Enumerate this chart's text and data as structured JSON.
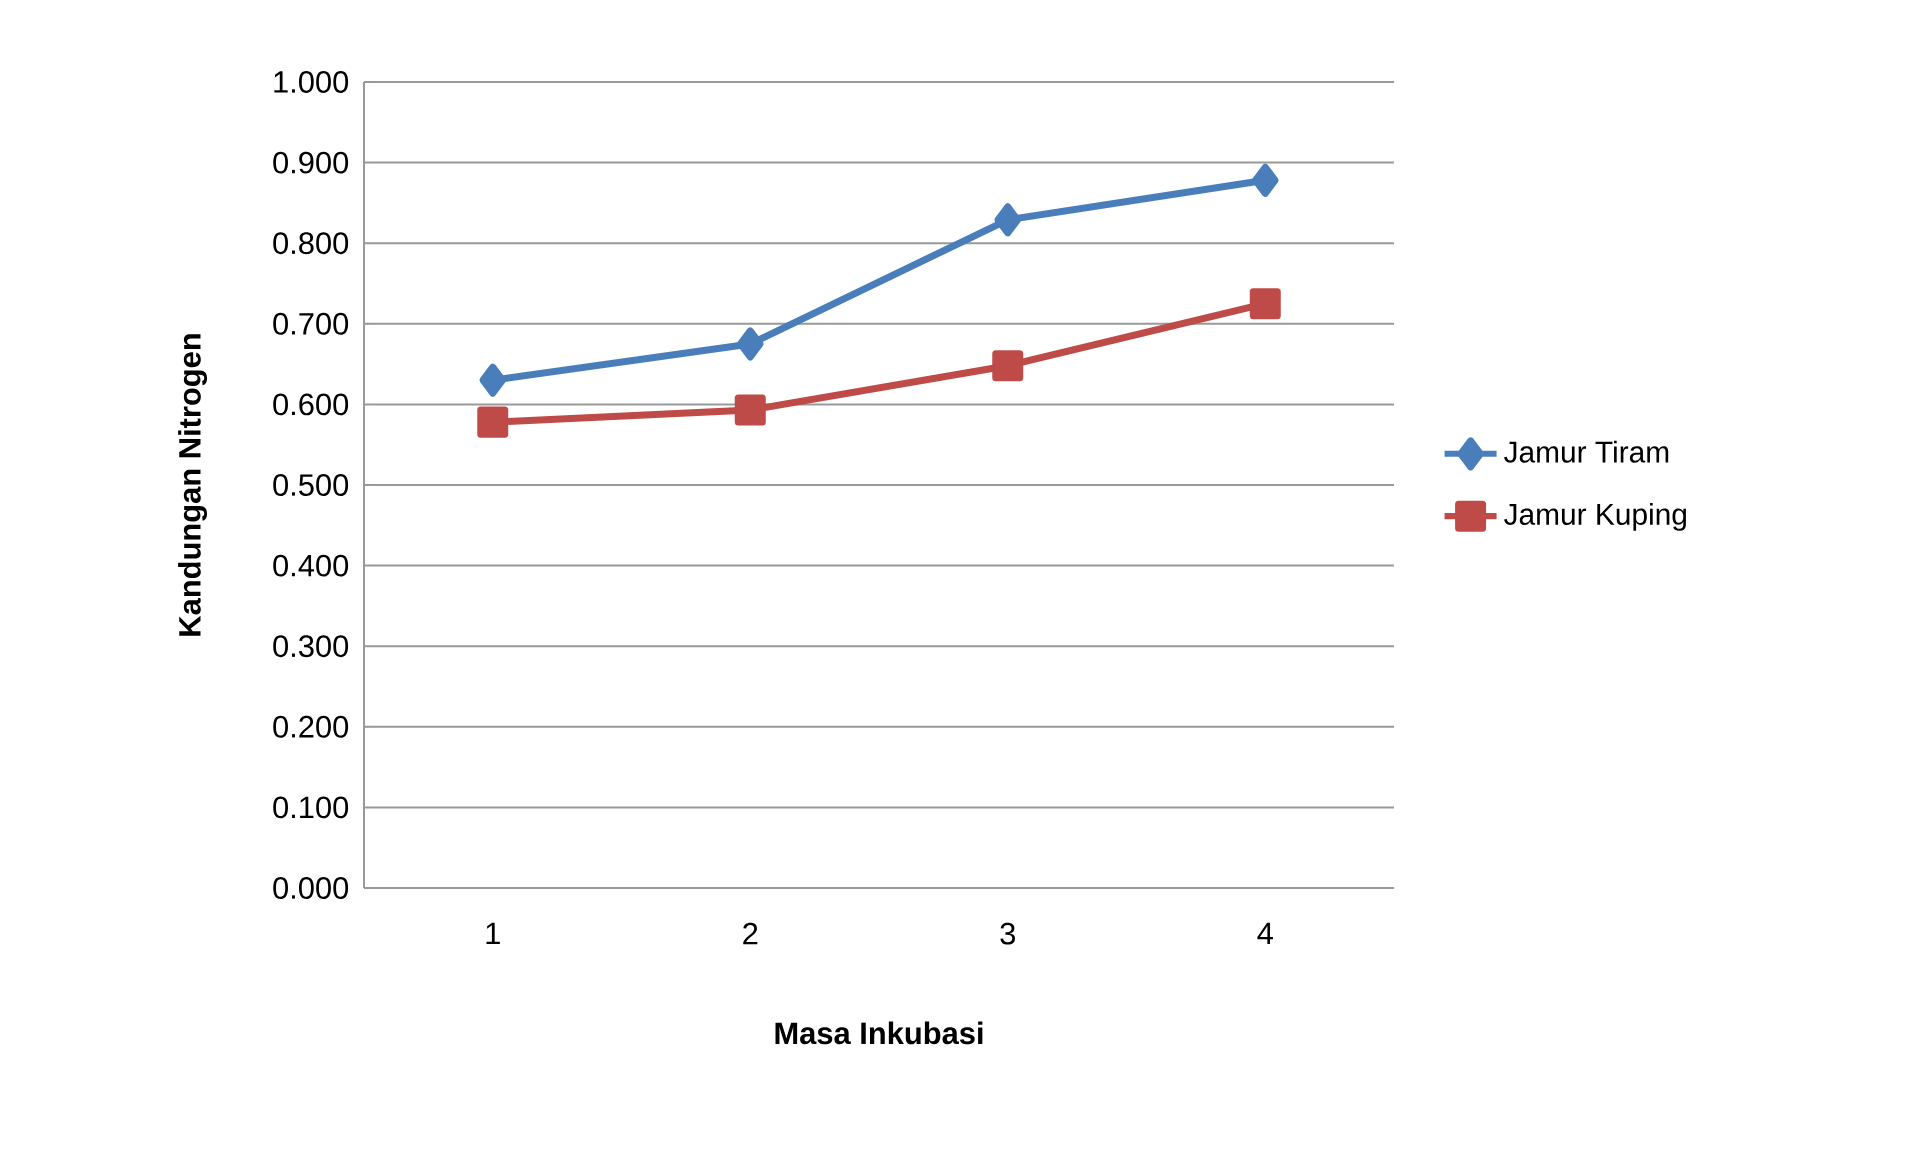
{
  "chart_data": {
    "type": "line",
    "xlabel": "Masa Inkubasi",
    "ylabel": "Kandungan Nitrogen",
    "categories": [
      "1",
      "2",
      "3",
      "4"
    ],
    "series": [
      {
        "name": "Jamur Tiram",
        "color": "#4a7ebb",
        "marker": "diamond",
        "values": [
          0.63,
          0.675,
          0.829,
          0.878
        ]
      },
      {
        "name": "Jamur Kuping",
        "color": "#be4b48",
        "marker": "square",
        "values": [
          0.578,
          0.593,
          0.648,
          0.725
        ]
      }
    ],
    "ylim": [
      0,
      1
    ],
    "yticks": [
      {
        "value": 0,
        "label": "0.000"
      },
      {
        "value": 0.1,
        "label": "0.100"
      },
      {
        "value": 0.2,
        "label": "0.200"
      },
      {
        "value": 0.3,
        "label": "0.300"
      },
      {
        "value": 0.4,
        "label": "0.400"
      },
      {
        "value": 0.5,
        "label": "0.500"
      },
      {
        "value": 0.6,
        "label": "0.600"
      },
      {
        "value": 0.7,
        "label": "0.700"
      },
      {
        "value": 0.8,
        "label": "0.800"
      },
      {
        "value": 0.9,
        "label": "0.900"
      },
      {
        "value": 1,
        "label": "1.000"
      }
    ],
    "grid": "y",
    "legend": "right",
    "line_style": "solid"
  }
}
